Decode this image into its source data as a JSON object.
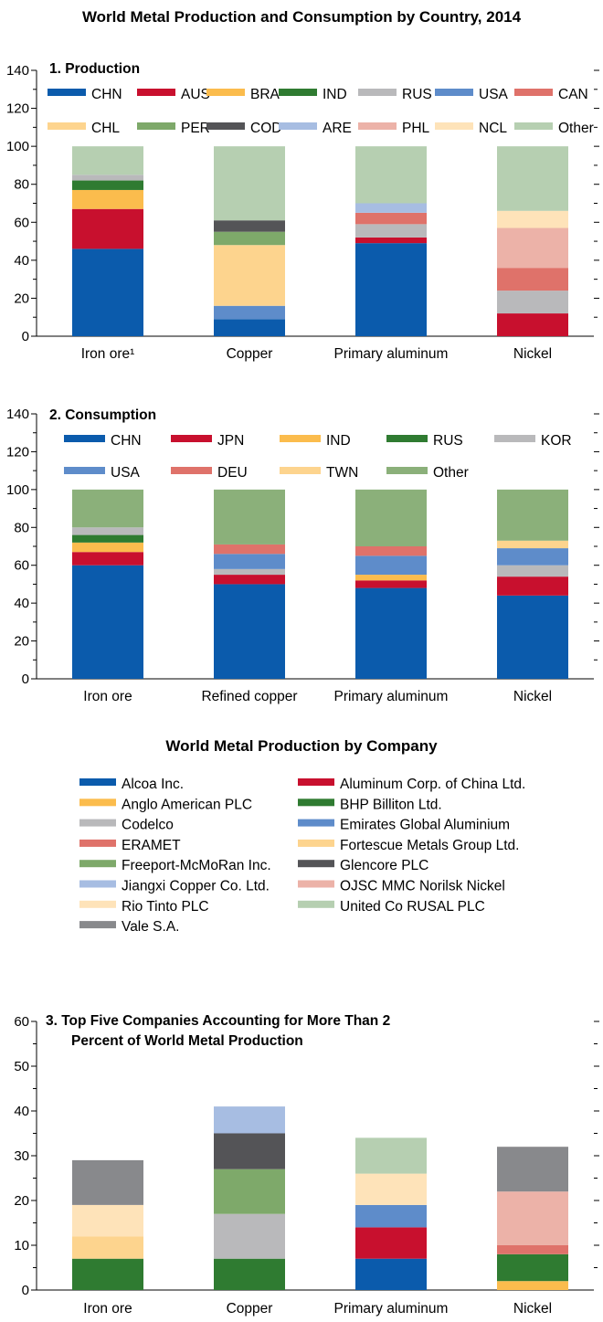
{
  "colors": {
    "CHN": "#0b5bac",
    "AUS": "#c8102e",
    "BRA": "#fbbc4d",
    "IND": "#2f7b31",
    "RUS": "#b9b9bb",
    "USA": "#5e8cca",
    "CAN": "#df726a",
    "CHL": "#fdd48e",
    "PER": "#7ea96a",
    "COD": "#545457",
    "ARE": "#a7bde2",
    "PHL": "#ecb2a8",
    "NCL": "#fee3b9",
    "Other": "#b6cfb1",
    "c_CHN": "#0b5bac",
    "c_JPN": "#c8102e",
    "c_IND": "#fbbc4d",
    "c_RUS": "#2f7b31",
    "c_KOR": "#b9b9bb",
    "c_USA": "#5e8cca",
    "c_DEU": "#df726a",
    "c_TWN": "#fdd48e",
    "c_Other": "#8bb07a",
    "alcoa": "#0b5bac",
    "chalco": "#c8102e",
    "anglo": "#fbbc4d",
    "bhp": "#2f7b31",
    "codelco": "#b9b9bb",
    "ega": "#5e8cca",
    "eramet": "#df726a",
    "fortescue": "#fdd48e",
    "freeport": "#7ea96a",
    "glencore": "#545457",
    "jiangxi": "#a7bde2",
    "norilsk": "#ecb2a8",
    "rio": "#fee3b9",
    "rusal": "#b6cfb1",
    "vale": "#88898c"
  },
  "main_title": "World Metal Production and Consumption by Country, 2014",
  "company_title": "World Metal Production by Company",
  "company_legend": [
    {
      "key": "alcoa",
      "label": "Alcoa Inc."
    },
    {
      "key": "chalco",
      "label": "Aluminum Corp. of China Ltd."
    },
    {
      "key": "anglo",
      "label": "Anglo American PLC"
    },
    {
      "key": "bhp",
      "label": "BHP Billiton Ltd."
    },
    {
      "key": "codelco",
      "label": "Codelco"
    },
    {
      "key": "ega",
      "label": "Emirates Global Aluminium"
    },
    {
      "key": "eramet",
      "label": "ERAMET"
    },
    {
      "key": "fortescue",
      "label": "Fortescue Metals Group Ltd."
    },
    {
      "key": "freeport",
      "label": "Freeport-McMoRan Inc."
    },
    {
      "key": "glencore",
      "label": "Glencore PLC"
    },
    {
      "key": "jiangxi",
      "label": "Jiangxi Copper Co. Ltd."
    },
    {
      "key": "norilsk",
      "label": "OJSC MMC Norilsk Nickel"
    },
    {
      "key": "rio",
      "label": "Rio Tinto PLC"
    },
    {
      "key": "rusal",
      "label": "United Co RUSAL PLC"
    },
    {
      "key": "vale",
      "label": "Vale S.A."
    }
  ],
  "chart_data": [
    {
      "type": "bar",
      "stacked": true,
      "title": "1. Production",
      "categories": [
        "Iron ore¹",
        "Copper",
        "Primary aluminum",
        "Nickel"
      ],
      "ylim": [
        0,
        140
      ],
      "yticks": [
        0,
        20,
        40,
        60,
        80,
        100,
        120,
        140
      ],
      "legend": [
        "CHN",
        "AUS",
        "BRA",
        "IND",
        "RUS",
        "USA",
        "CAN",
        "CHL",
        "PER",
        "COD",
        "ARE",
        "PHL",
        "NCL",
        "Other"
      ],
      "stacks": [
        [
          [
            "CHN",
            46
          ],
          [
            "AUS",
            21
          ],
          [
            "BRA",
            10
          ],
          [
            "IND",
            5
          ],
          [
            "RUS",
            3
          ],
          [
            "Other",
            15
          ]
        ],
        [
          [
            "CHN",
            9
          ],
          [
            "USA",
            7
          ],
          [
            "CHL",
            32
          ],
          [
            "PER",
            7
          ],
          [
            "COD",
            6
          ],
          [
            "Other",
            39
          ]
        ],
        [
          [
            "CHN",
            49
          ],
          [
            "AUS",
            3
          ],
          [
            "RUS",
            7
          ],
          [
            "CAN",
            6
          ],
          [
            "ARE",
            5
          ],
          [
            "Other",
            30
          ]
        ],
        [
          [
            "AUS",
            12
          ],
          [
            "RUS",
            12
          ],
          [
            "CAN",
            12
          ],
          [
            "PHL",
            21
          ],
          [
            "NCL",
            9
          ],
          [
            "Other",
            34
          ]
        ]
      ]
    },
    {
      "type": "bar",
      "stacked": true,
      "title": "2. Consumption",
      "categories": [
        "Iron ore",
        "Refined copper",
        "Primary aluminum",
        "Nickel"
      ],
      "ylim": [
        0,
        140
      ],
      "yticks": [
        0,
        20,
        40,
        60,
        80,
        100,
        120,
        140
      ],
      "legend": [
        "CHN",
        "JPN",
        "IND",
        "RUS",
        "KOR",
        "USA",
        "DEU",
        "TWN",
        "Other"
      ],
      "stacks": [
        [
          [
            "CHN",
            60
          ],
          [
            "JPN",
            7
          ],
          [
            "IND",
            5
          ],
          [
            "RUS",
            4
          ],
          [
            "KOR",
            4
          ],
          [
            "Other",
            20
          ]
        ],
        [
          [
            "CHN",
            50
          ],
          [
            "JPN",
            5
          ],
          [
            "KOR",
            3
          ],
          [
            "USA",
            8
          ],
          [
            "DEU",
            5
          ],
          [
            "Other",
            29
          ]
        ],
        [
          [
            "CHN",
            48
          ],
          [
            "JPN",
            4
          ],
          [
            "IND",
            3
          ],
          [
            "USA",
            10
          ],
          [
            "DEU",
            5
          ],
          [
            "Other",
            30
          ]
        ],
        [
          [
            "CHN",
            44
          ],
          [
            "JPN",
            10
          ],
          [
            "KOR",
            6
          ],
          [
            "USA",
            9
          ],
          [
            "TWN",
            4
          ],
          [
            "Other",
            27
          ]
        ]
      ]
    },
    {
      "type": "bar",
      "stacked": true,
      "title": "3. Top Five Companies Accounting for More Than 2 Percent of World Metal Production",
      "categories": [
        "Iron ore",
        "Copper",
        "Primary aluminum",
        "Nickel"
      ],
      "ylim": [
        0,
        60
      ],
      "yticks": [
        0,
        10,
        20,
        30,
        40,
        50,
        60
      ],
      "stacks": [
        [
          [
            "bhp",
            7
          ],
          [
            "fortescue",
            5
          ],
          [
            "rio",
            7
          ],
          [
            "vale",
            10
          ]
        ],
        [
          [
            "bhp",
            7
          ],
          [
            "codelco",
            10
          ],
          [
            "freeport",
            10
          ],
          [
            "glencore",
            8
          ],
          [
            "jiangxi",
            6
          ]
        ],
        [
          [
            "alcoa",
            7
          ],
          [
            "chalco",
            7
          ],
          [
            "ega",
            5
          ],
          [
            "rio",
            7
          ],
          [
            "rusal",
            8
          ]
        ],
        [
          [
            "anglo",
            2
          ],
          [
            "bhp",
            6
          ],
          [
            "eramet",
            2
          ],
          [
            "norilsk",
            12
          ],
          [
            "vale",
            10
          ]
        ]
      ]
    }
  ]
}
